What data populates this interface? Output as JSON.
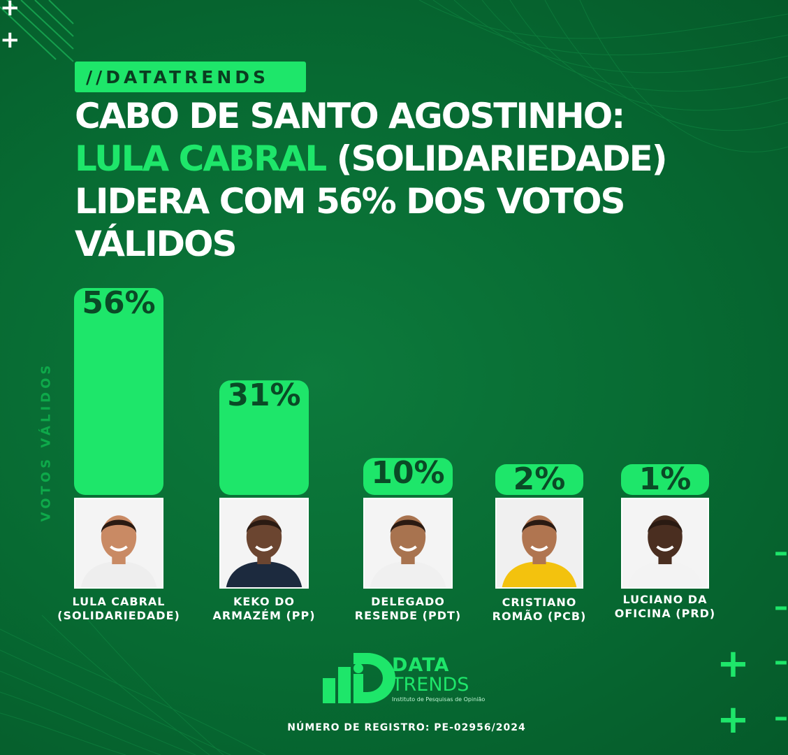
{
  "brand_tag": "//DATATRENDS",
  "headline": {
    "line1": "CABO DE SANTO AGOSTINHO:",
    "line2_highlight": "LULA CABRAL",
    "line2_rest": " (SOLIDARIEDADE)",
    "line3": "LIDERA COM 56% DOS VOTOS",
    "line4": "VÁLIDOS"
  },
  "colors": {
    "background": "#076a32",
    "accent_green": "#1ee66a",
    "bar_label_text": "#0a4a26"
  },
  "chart_data": {
    "type": "bar",
    "ylabel": "VOTOS VÁLIDOS",
    "categories": [
      "LULA CABRAL\n(SOLIDARIEDADE)",
      "KEKO DO\nARMAZÉM (PP)",
      "DELEGADO\nRESENDE (PDT)",
      "CRISTIANO\nROMÃO (PCB)",
      "LUCIANO DA\nOFICINA (PRD)"
    ],
    "values": [
      56,
      31,
      10,
      2,
      1
    ],
    "value_labels": [
      "56%",
      "31%",
      "10%",
      "2%",
      "1%"
    ],
    "unit": "%",
    "ylim": [
      0,
      56
    ],
    "photo_backgrounds": [
      "#f4f4f4",
      "#f4f4f4",
      "#f4f4f4",
      "#f0f0f0",
      "#f4f4f4"
    ],
    "shirt_colors": [
      "#eeeeee",
      "#1c2a3e",
      "#f0f0f0",
      "#f3c20e",
      "#f3f3f3"
    ],
    "skin_colors": [
      "#c98a64",
      "#6b4530",
      "#a8734f",
      "#b07550",
      "#4a2e20"
    ]
  },
  "logo": {
    "line1": "DATA",
    "line2": "TRENDS",
    "subtitle": "Instituto de Pesquisas de Opinião"
  },
  "registration": "NÚMERO DE REGISTRO:  PE-02956/2024"
}
